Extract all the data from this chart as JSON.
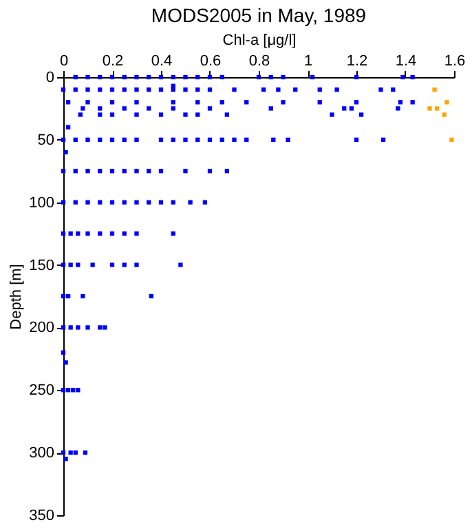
{
  "chart_data": {
    "type": "scatter",
    "title": "MODS2005 in May, 1989",
    "xlabel": "Chl-a [μg/l]",
    "ylabel": "Depth [m]",
    "xlim": [
      0,
      1.6
    ],
    "xticks": [
      0,
      0.2,
      0.4,
      0.6,
      0.8,
      1,
      1.2,
      1.4,
      1.6
    ],
    "ylim": [
      350,
      0
    ],
    "yticks": [
      0,
      50,
      100,
      150,
      200,
      250,
      300,
      350
    ],
    "grid": false,
    "marker": "square",
    "series": [
      {
        "color": "#0000ff",
        "x": [
          0.05,
          0.1,
          0.15,
          0.2,
          0.25,
          0.3,
          0.35,
          0.4,
          0.45,
          0.5,
          0.55,
          0.6,
          0.65,
          0.8,
          0.85,
          0.9,
          1.02,
          1.2,
          1.39,
          1.43,
          0.0,
          0.05,
          0.1,
          0.15,
          0.2,
          0.25,
          0.3,
          0.35,
          0.4,
          0.45,
          0.5,
          0.55,
          0.6,
          0.7,
          0.82,
          0.88,
          0.95,
          1.05,
          1.12,
          1.3,
          1.35,
          0.45,
          0.02,
          0.1,
          0.2,
          0.3,
          0.45,
          0.55,
          0.65,
          0.75,
          0.9,
          1.05,
          1.2,
          1.38,
          1.43,
          0.08,
          0.15,
          0.25,
          0.35,
          0.45,
          0.6,
          0.85,
          1.15,
          1.18,
          1.37,
          0.07,
          0.15,
          0.2,
          0.3,
          0.4,
          0.5,
          0.55,
          0.67,
          1.1,
          1.22,
          0.02,
          0.0,
          0.05,
          0.1,
          0.15,
          0.2,
          0.25,
          0.3,
          0.4,
          0.45,
          0.5,
          0.55,
          0.6,
          0.65,
          0.7,
          0.75,
          0.86,
          0.92,
          1.2,
          1.31,
          0.01,
          0.0,
          0.05,
          0.1,
          0.15,
          0.2,
          0.25,
          0.3,
          0.35,
          0.4,
          0.5,
          0.6,
          0.67,
          0.0,
          0.05,
          0.1,
          0.15,
          0.2,
          0.25,
          0.3,
          0.35,
          0.4,
          0.45,
          0.52,
          0.58,
          0.0,
          0.03,
          0.06,
          0.1,
          0.15,
          0.2,
          0.25,
          0.3,
          0.45,
          0.0,
          0.03,
          0.06,
          0.12,
          0.2,
          0.25,
          0.3,
          0.48,
          0.0,
          0.02,
          0.08,
          0.36,
          0.0,
          0.03,
          0.06,
          0.1,
          0.15,
          0.17,
          0.0,
          0.01,
          0.0,
          0.02,
          0.04,
          0.06,
          0.0,
          0.01,
          0.03,
          0.05,
          0.09
        ],
        "values": [
          0,
          0,
          0,
          0,
          0,
          0,
          0,
          0,
          0,
          0,
          0,
          0,
          0,
          0,
          0,
          0,
          0,
          0,
          0,
          0,
          10,
          10,
          10,
          10,
          10,
          10,
          10,
          10,
          10,
          10,
          10,
          10,
          10,
          10,
          10,
          10,
          10,
          10,
          10,
          10,
          10,
          7,
          20,
          20,
          20,
          20,
          20,
          20,
          20,
          20,
          20,
          20,
          20,
          20,
          20,
          25,
          25,
          25,
          25,
          25,
          25,
          25,
          25,
          25,
          25,
          30,
          30,
          30,
          30,
          30,
          30,
          30,
          30,
          30,
          30,
          40,
          50,
          50,
          50,
          50,
          50,
          50,
          50,
          50,
          50,
          50,
          50,
          50,
          50,
          50,
          50,
          50,
          50,
          50,
          50,
          60,
          75,
          75,
          75,
          75,
          75,
          75,
          75,
          75,
          75,
          75,
          75,
          75,
          100,
          100,
          100,
          100,
          100,
          100,
          100,
          100,
          100,
          100,
          100,
          100,
          125,
          125,
          125,
          125,
          125,
          125,
          125,
          125,
          125,
          150,
          150,
          150,
          150,
          150,
          150,
          150,
          150,
          175,
          175,
          175,
          175,
          200,
          200,
          200,
          200,
          200,
          200,
          220,
          228,
          250,
          250,
          250,
          250,
          300,
          305,
          300,
          300,
          300
        ]
      },
      {
        "color": "#ffa500",
        "x": [
          1.52,
          1.57,
          1.53,
          1.5,
          1.56,
          1.59
        ],
        "values": [
          10,
          20,
          25,
          25,
          30,
          50
        ]
      }
    ]
  }
}
